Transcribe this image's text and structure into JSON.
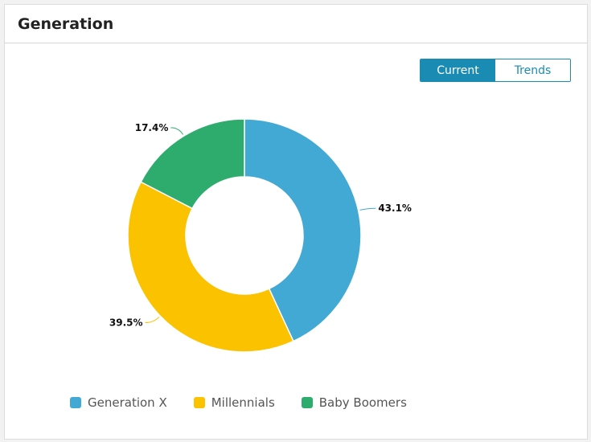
{
  "card": {
    "title": "Generation"
  },
  "toggle": {
    "current_label": "Current",
    "trends_label": "Trends",
    "active": "current"
  },
  "colors": {
    "generation_x": "#42a8d4",
    "millennials": "#fbc200",
    "baby_boomers": "#2eac6e",
    "accent": "#1a8bb3"
  },
  "chart_data": {
    "type": "pie",
    "donut": true,
    "title": "Generation",
    "series": [
      {
        "name": "Generation X",
        "value": 43.1,
        "label": "43.1%",
        "color": "#42a8d4"
      },
      {
        "name": "Millennials",
        "value": 39.5,
        "label": "39.5%",
        "color": "#fbc200"
      },
      {
        "name": "Baby Boomers",
        "value": 17.4,
        "label": "17.4%",
        "color": "#2eac6e"
      }
    ],
    "legend_position": "bottom"
  }
}
